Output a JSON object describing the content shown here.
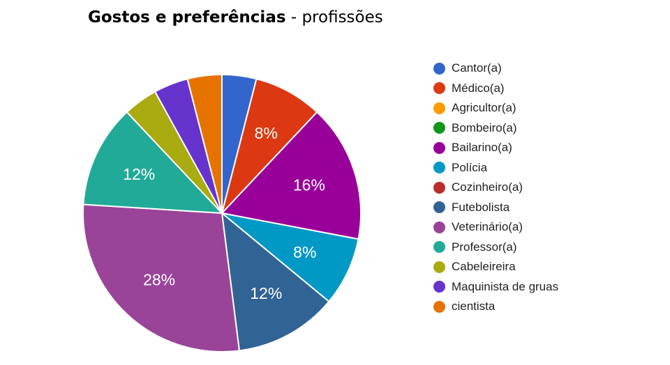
{
  "title": {
    "main": "Gostos e preferências",
    "separator": " - ",
    "sub": "profissões"
  },
  "chart_data": {
    "type": "pie",
    "start_angle_deg": 90,
    "direction": "clockwise",
    "legend_position": "right",
    "slices": [
      {
        "label": "Cantor(a)",
        "value": 4,
        "color": "#3366cc",
        "display": ""
      },
      {
        "label": "Médico(a)",
        "value": 8,
        "color": "#dc3912",
        "display": "8%"
      },
      {
        "label": "Agricultor(a)",
        "value": 0,
        "color": "#ff9900",
        "display": ""
      },
      {
        "label": "Bombeiro(a)",
        "value": 0,
        "color": "#109618",
        "display": ""
      },
      {
        "label": "Bailarino(a)",
        "value": 16,
        "color": "#990099",
        "display": "16%"
      },
      {
        "label": "Polícia",
        "value": 8,
        "color": "#0099c6",
        "display": "8%"
      },
      {
        "label": "Cozinheiro(a)",
        "value": 0,
        "color": "#b82e2e",
        "display": ""
      },
      {
        "label": "Futebolista",
        "value": 12,
        "color": "#316395",
        "display": "12%"
      },
      {
        "label": "Veterinário(a)",
        "value": 28,
        "color": "#994499",
        "display": "28%"
      },
      {
        "label": "Professor(a)",
        "value": 12,
        "color": "#22aa99",
        "display": "12%"
      },
      {
        "label": "Cabeleireira",
        "value": 4,
        "color": "#aaaa11",
        "display": ""
      },
      {
        "label": "Maquinista de gruas",
        "value": 4,
        "color": "#6633cc",
        "display": ""
      },
      {
        "label": "cientista",
        "value": 4,
        "color": "#e67300",
        "display": ""
      }
    ]
  }
}
